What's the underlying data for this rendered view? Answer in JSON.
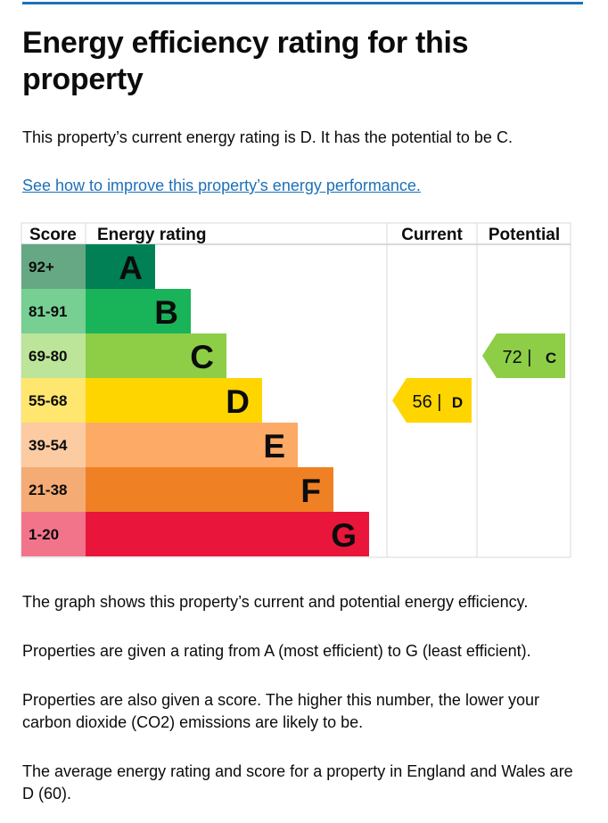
{
  "page": {
    "title": "Energy efficiency rating for this property",
    "intro": "This property’s current energy rating is D. It has the potential to be C.",
    "link_text": "See how to improve this property’s energy performance.",
    "paragraphs": [
      "The graph shows this property’s current and potential energy efficiency.",
      "Properties are given a rating from A (most efficient) to G (least efficient).",
      "Properties are also given a score. The higher this number, the lower your carbon dioxide (CO2) emissions are likely to be.",
      "The average energy rating and score for a property in England and Wales are D (60)."
    ]
  },
  "chart_data": {
    "type": "table",
    "headers": {
      "score": "Score",
      "rating": "Energy rating",
      "current": "Current",
      "potential": "Potential"
    },
    "bands": [
      {
        "letter": "A",
        "score_range": "92+",
        "color": "#008054",
        "score_bg": "#66a883"
      },
      {
        "letter": "B",
        "score_range": "81-91",
        "color": "#19b459",
        "score_bg": "#77cf93"
      },
      {
        "letter": "C",
        "score_range": "69-80",
        "color": "#8dce46",
        "score_bg": "#bde59a"
      },
      {
        "letter": "D",
        "score_range": "55-68",
        "color": "#ffd500",
        "score_bg": "#ffe66f"
      },
      {
        "letter": "E",
        "score_range": "39-54",
        "color": "#fcaa65",
        "score_bg": "#fdcba2"
      },
      {
        "letter": "F",
        "score_range": "21-38",
        "color": "#ef8023",
        "score_bg": "#f4ac74"
      },
      {
        "letter": "G",
        "score_range": "1-20",
        "color": "#e9153b",
        "score_bg": "#f2748b"
      }
    ],
    "current": {
      "score": 56,
      "letter": "D",
      "label": "56 |",
      "color": "#ffd500"
    },
    "potential": {
      "score": 72,
      "letter": "C",
      "label": "72 |",
      "color": "#8dce46"
    }
  }
}
